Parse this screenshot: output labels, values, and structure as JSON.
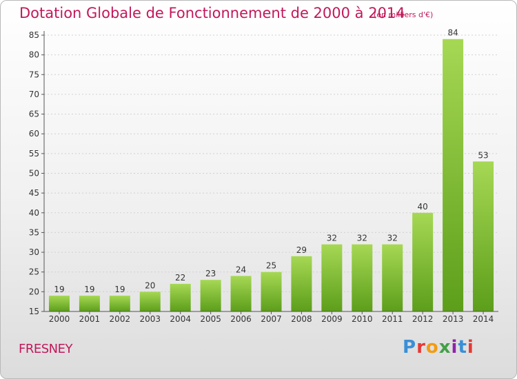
{
  "header": {
    "title": "Dotation Globale de Fonctionnement de 2000 à 2014",
    "subtitle": "(en milliers d'€)"
  },
  "footer": {
    "commune": "FRESNEY",
    "logo": "Proxiti",
    "logo_colors": [
      "#3a8fd6",
      "#e53935",
      "#f39c12",
      "#43a047",
      "#8e24aa",
      "#3a8fd6",
      "#e53935"
    ]
  },
  "chart_data": {
    "type": "bar",
    "categories": [
      "2000",
      "2001",
      "2002",
      "2003",
      "2004",
      "2005",
      "2006",
      "2007",
      "2008",
      "2009",
      "2010",
      "2011",
      "2012",
      "2013",
      "2014"
    ],
    "values": [
      19,
      19,
      19,
      20,
      22,
      23,
      24,
      25,
      29,
      32,
      32,
      32,
      40,
      84,
      53
    ],
    "ylim": [
      15,
      85
    ],
    "yticks": [
      15,
      20,
      25,
      30,
      35,
      40,
      45,
      50,
      55,
      60,
      65,
      70,
      75,
      80,
      85
    ],
    "grid": true,
    "bar_color_top": "#a6d854",
    "bar_color_bottom": "#5c9e1a"
  }
}
